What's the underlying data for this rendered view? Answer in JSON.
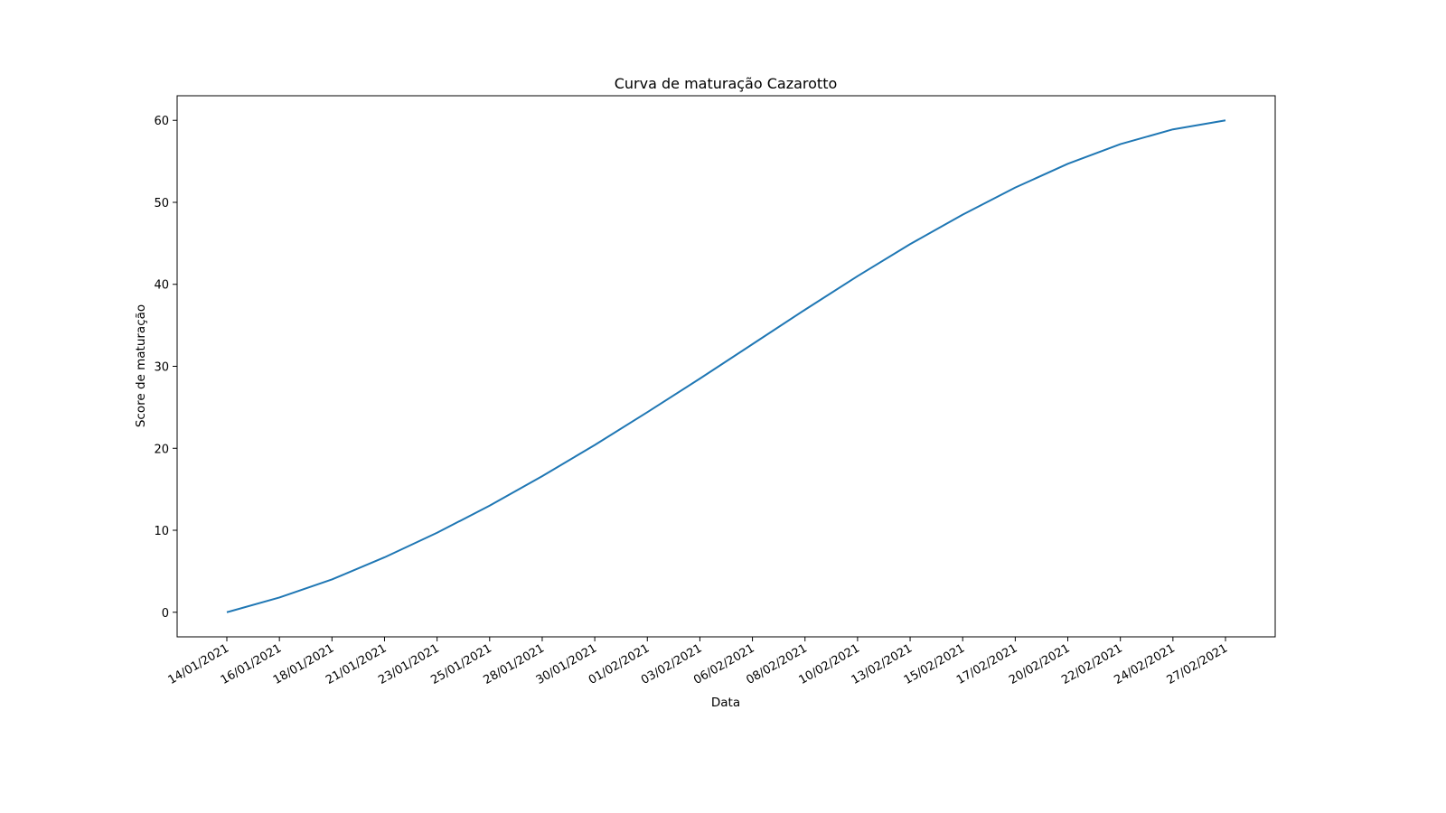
{
  "chart_data": {
    "type": "line",
    "title": "Curva de maturação Cazarotto",
    "xlabel": "Data",
    "ylabel": "Score de maturação",
    "x_tick_labels": [
      "14/01/2021",
      "16/01/2021",
      "18/01/2021",
      "21/01/2021",
      "23/01/2021",
      "25/01/2021",
      "28/01/2021",
      "30/01/2021",
      "01/02/2021",
      "03/02/2021",
      "06/02/2021",
      "08/02/2021",
      "10/02/2021",
      "13/02/2021",
      "15/02/2021",
      "17/02/2021",
      "20/02/2021",
      "22/02/2021",
      "24/02/2021",
      "27/02/2021"
    ],
    "y_ticks": [
      0,
      10,
      20,
      30,
      40,
      50,
      60
    ],
    "ylim": [
      -3,
      63
    ],
    "series": [
      {
        "color": "#1f77b4",
        "x": [
          "14/01/2021",
          "16/01/2021",
          "18/01/2021",
          "21/01/2021",
          "23/01/2021",
          "25/01/2021",
          "28/01/2021",
          "30/01/2021",
          "01/02/2021",
          "03/02/2021",
          "06/02/2021",
          "08/02/2021",
          "10/02/2021",
          "13/02/2021",
          "15/02/2021",
          "17/02/2021",
          "20/02/2021",
          "22/02/2021",
          "24/02/2021",
          "27/02/2021"
        ],
        "values": [
          0,
          1.8,
          4.0,
          6.7,
          9.7,
          13.0,
          16.6,
          20.4,
          24.4,
          28.5,
          32.7,
          36.9,
          41.0,
          44.9,
          48.5,
          51.8,
          54.7,
          57.1,
          58.9,
          60.0
        ]
      }
    ],
    "grid": false,
    "legend": "none"
  }
}
